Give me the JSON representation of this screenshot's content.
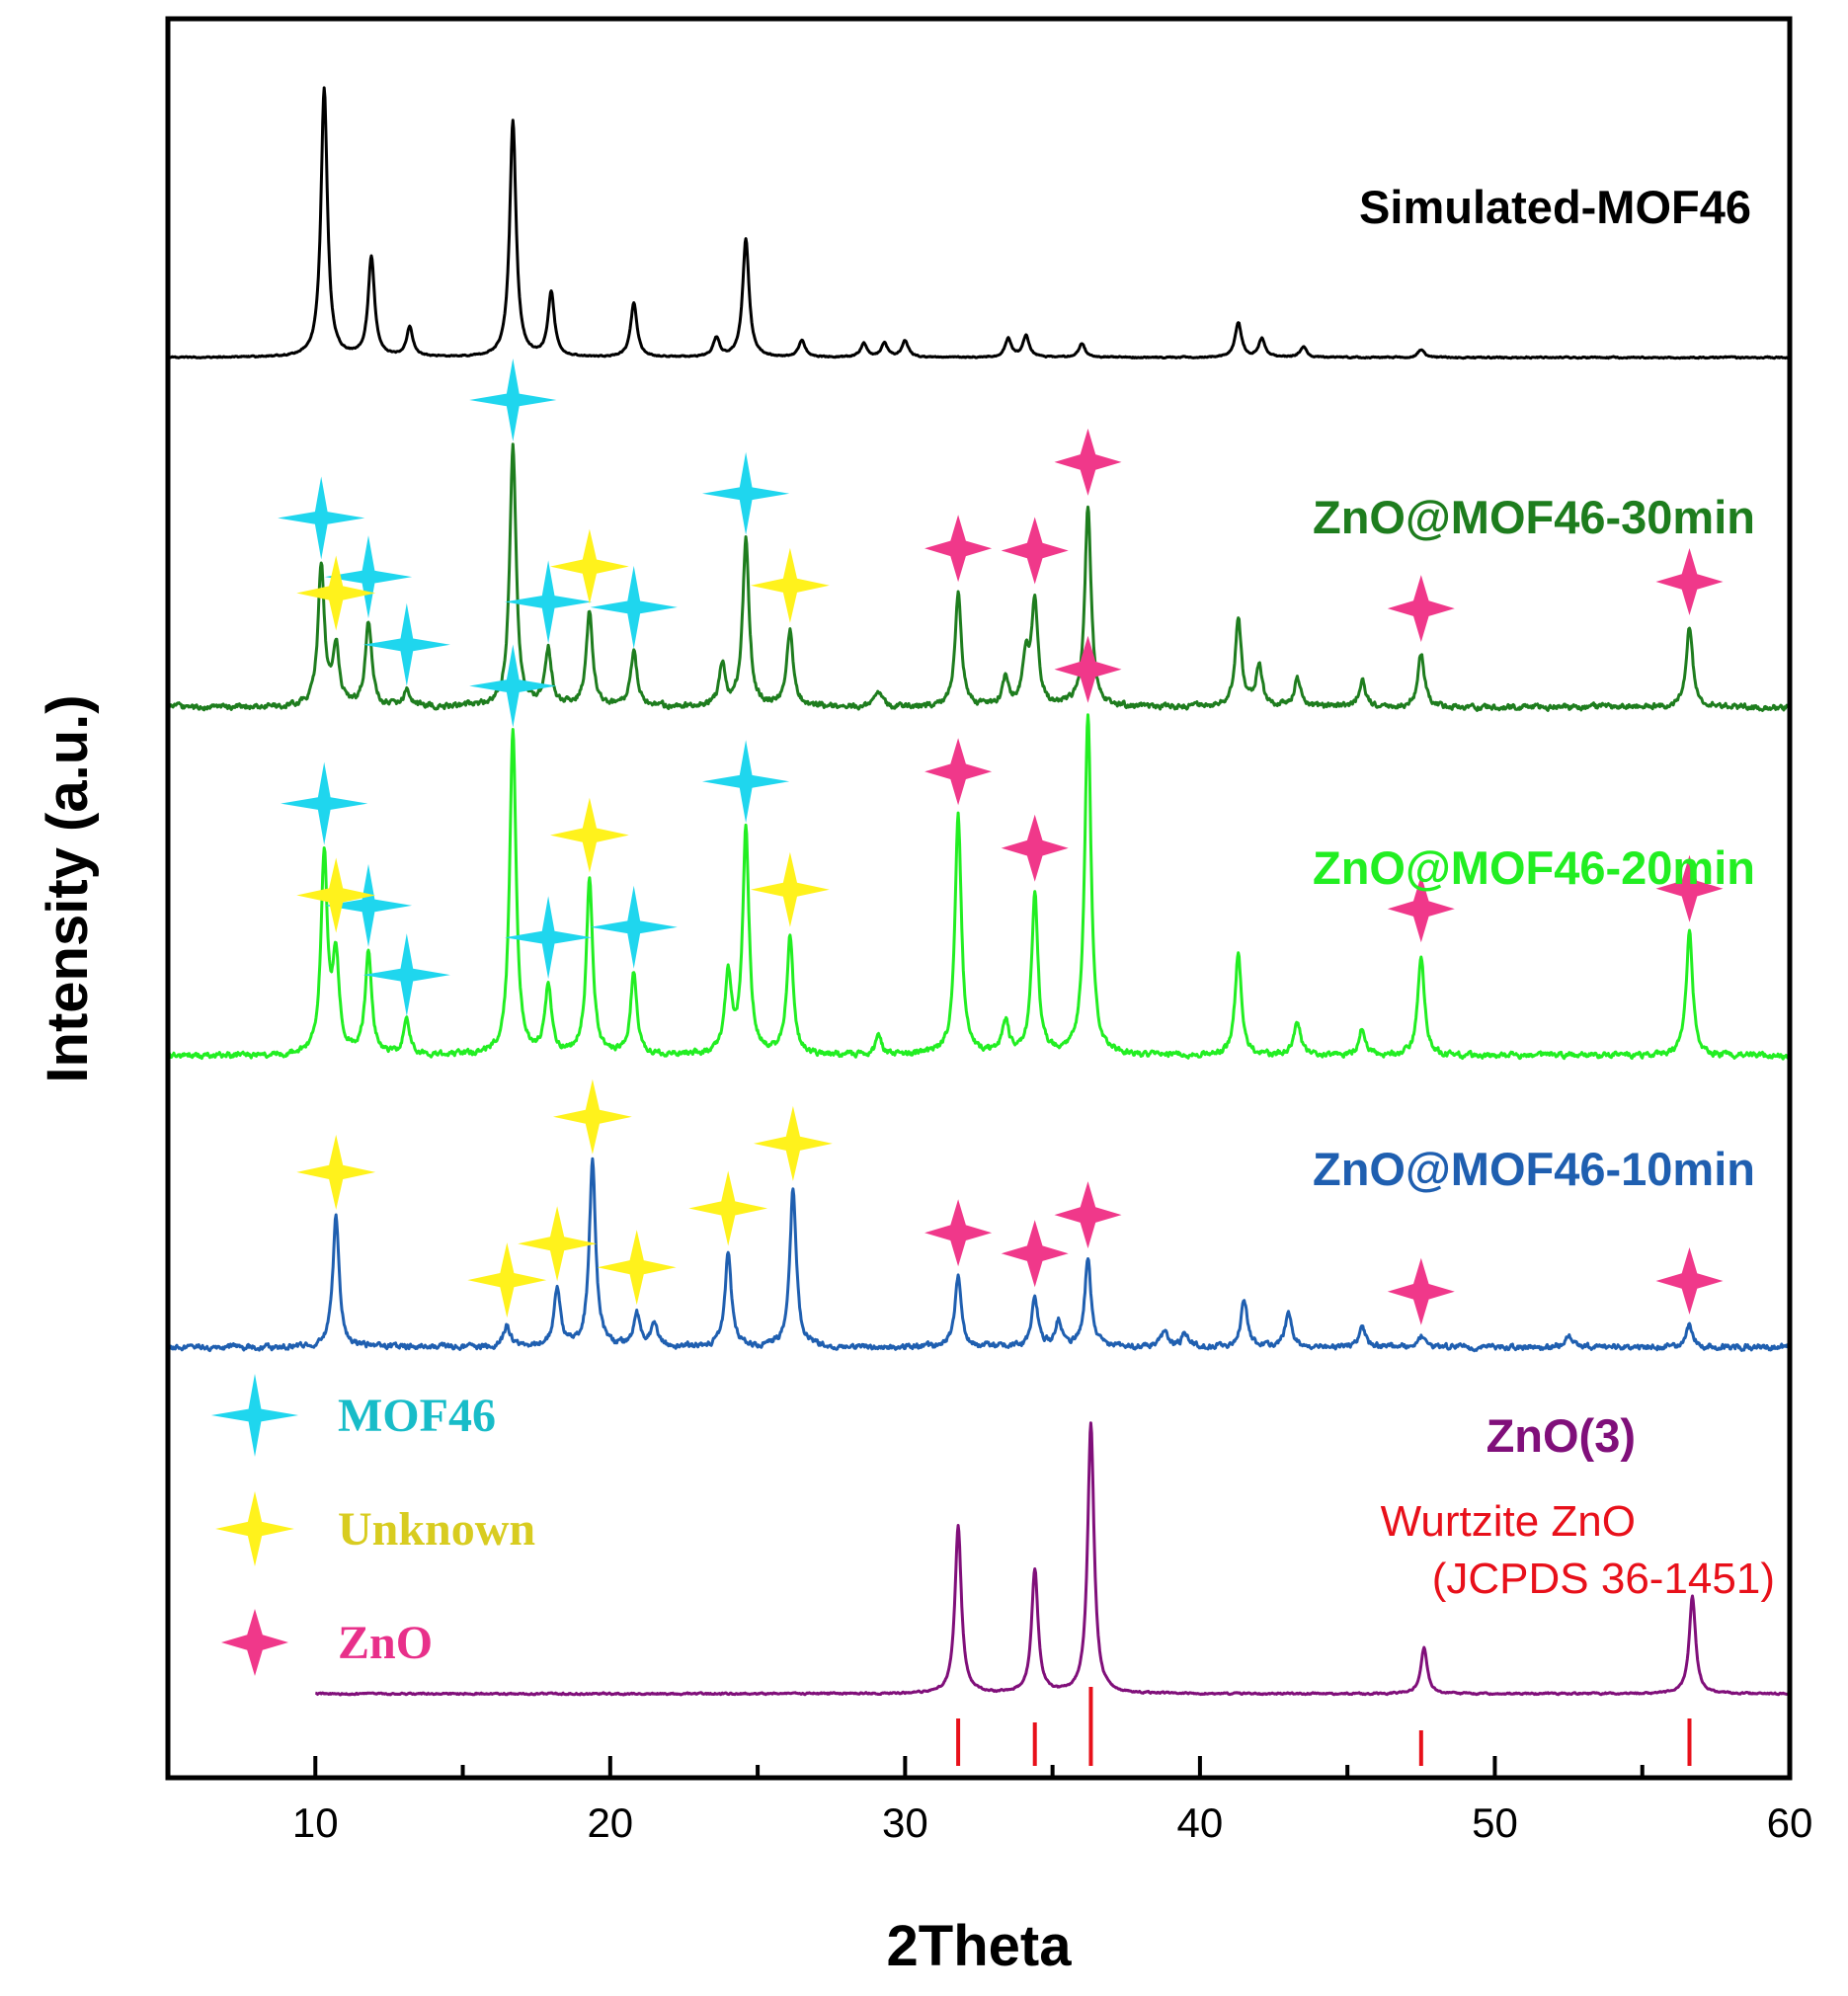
{
  "chart_data": {
    "type": "line",
    "xlabel": "2Theta",
    "ylabel": "Intensity (a.u.)",
    "xlim": [
      5,
      60
    ],
    "xticks": [
      10,
      20,
      30,
      40,
      50,
      60
    ],
    "series": [
      {
        "name": "Simulated-MOF46",
        "color": "#000000",
        "peaks": [
          [
            10.3,
            1.0
          ],
          [
            11.9,
            0.37
          ],
          [
            13.2,
            0.11
          ],
          [
            16.7,
            0.88
          ],
          [
            18.0,
            0.24
          ],
          [
            20.8,
            0.2
          ],
          [
            23.6,
            0.07
          ],
          [
            24.6,
            0.44
          ],
          [
            26.5,
            0.06
          ],
          [
            28.6,
            0.05
          ],
          [
            29.3,
            0.05
          ],
          [
            30.0,
            0.06
          ],
          [
            33.5,
            0.07
          ],
          [
            34.1,
            0.08
          ],
          [
            36.0,
            0.05
          ],
          [
            41.3,
            0.13
          ],
          [
            42.1,
            0.07
          ],
          [
            43.5,
            0.04
          ],
          [
            47.5,
            0.03
          ]
        ]
      },
      {
        "name": "ZnO@MOF46-30min",
        "color": "#1e7d1e",
        "peaks": [
          [
            10.2,
            0.52
          ],
          [
            10.7,
            0.22
          ],
          [
            11.8,
            0.31
          ],
          [
            13.1,
            0.06
          ],
          [
            16.7,
            0.97
          ],
          [
            17.9,
            0.21
          ],
          [
            19.3,
            0.35
          ],
          [
            20.8,
            0.2
          ],
          [
            23.8,
            0.15
          ],
          [
            24.6,
            0.62
          ],
          [
            26.1,
            0.28
          ],
          [
            29.1,
            0.05
          ],
          [
            31.8,
            0.42
          ],
          [
            33.4,
            0.1
          ],
          [
            34.1,
            0.18
          ],
          [
            34.4,
            0.38
          ],
          [
            36.2,
            0.74
          ],
          [
            41.3,
            0.33
          ],
          [
            42.0,
            0.15
          ],
          [
            43.3,
            0.1
          ],
          [
            45.5,
            0.1
          ],
          [
            47.5,
            0.2
          ],
          [
            56.6,
            0.3
          ]
        ]
      },
      {
        "name": "ZnO@MOF46-20min",
        "color": "#22ee22",
        "peaks": [
          [
            10.3,
            0.58
          ],
          [
            10.7,
            0.28
          ],
          [
            11.8,
            0.3
          ],
          [
            13.1,
            0.1
          ],
          [
            16.7,
            0.95
          ],
          [
            17.9,
            0.2
          ],
          [
            19.3,
            0.51
          ],
          [
            20.8,
            0.24
          ],
          [
            24.0,
            0.23
          ],
          [
            24.6,
            0.66
          ],
          [
            26.1,
            0.35
          ],
          [
            29.1,
            0.05
          ],
          [
            31.8,
            0.7
          ],
          [
            33.4,
            0.1
          ],
          [
            34.4,
            0.47
          ],
          [
            36.2,
            1.0
          ],
          [
            41.3,
            0.3
          ],
          [
            43.3,
            0.1
          ],
          [
            45.5,
            0.08
          ],
          [
            47.5,
            0.3
          ],
          [
            56.6,
            0.36
          ]
        ]
      },
      {
        "name": "ZnO@MOF46-10min",
        "color": "#1f5fb0",
        "peaks": [
          [
            10.7,
            0.6
          ],
          [
            16.5,
            0.1
          ],
          [
            18.2,
            0.26
          ],
          [
            19.4,
            0.85
          ],
          [
            20.9,
            0.15
          ],
          [
            21.5,
            0.1
          ],
          [
            24.0,
            0.43
          ],
          [
            26.2,
            0.73
          ],
          [
            31.8,
            0.32
          ],
          [
            34.4,
            0.22
          ],
          [
            35.2,
            0.12
          ],
          [
            36.2,
            0.4
          ],
          [
            38.8,
            0.08
          ],
          [
            39.5,
            0.06
          ],
          [
            41.5,
            0.22
          ],
          [
            43.0,
            0.16
          ],
          [
            45.5,
            0.09
          ],
          [
            47.5,
            0.05
          ],
          [
            52.5,
            0.05
          ],
          [
            56.6,
            0.1
          ]
        ]
      },
      {
        "name": "ZnO(3)",
        "color": "#800f7a",
        "xstart": 10,
        "peaks": [
          [
            31.8,
            0.62
          ],
          [
            34.4,
            0.46
          ],
          [
            36.3,
            1.0
          ],
          [
            47.6,
            0.17
          ],
          [
            56.7,
            0.36
          ]
        ]
      }
    ],
    "reference": {
      "name": "Wurtzite ZnO",
      "sub": "(JCPDS 36-1451)",
      "color": "#e8101a",
      "positions": [
        31.8,
        34.4,
        36.3,
        47.5,
        56.6
      ],
      "heights": [
        0.6,
        0.55,
        1.0,
        0.45,
        0.6
      ]
    },
    "legend": [
      {
        "marker": "MOF46",
        "label": "MOF46",
        "color": "#1fd6ee",
        "text_color": "#18bcc8"
      },
      {
        "marker": "Unknown",
        "label": "Unknown",
        "color": "#fff21c",
        "text_color": "#d8cc20"
      },
      {
        "marker": "ZnO",
        "label": "ZnO",
        "color": "#f0388a",
        "text_color": "#e8308a"
      }
    ],
    "markers": {
      "ZnO@MOF46-30min": {
        "MOF46": [
          10.2,
          11.8,
          13.1,
          16.7,
          17.9,
          20.8,
          24.6
        ],
        "Unknown": [
          10.7,
          19.3,
          26.1
        ],
        "ZnO": [
          31.8,
          34.4,
          36.2,
          47.5,
          56.6
        ]
      },
      "ZnO@MOF46-20min": {
        "MOF46": [
          10.3,
          11.8,
          13.1,
          16.7,
          17.9,
          20.8,
          24.6
        ],
        "Unknown": [
          10.7,
          19.3,
          26.1
        ],
        "ZnO": [
          31.8,
          34.4,
          36.2,
          47.5,
          56.6
        ]
      },
      "ZnO@MOF46-10min": {
        "Unknown": [
          10.7,
          16.5,
          18.2,
          19.4,
          20.9,
          24.0,
          26.2
        ],
        "ZnO": [
          31.8,
          34.4,
          36.2,
          47.5,
          56.6
        ]
      }
    }
  }
}
